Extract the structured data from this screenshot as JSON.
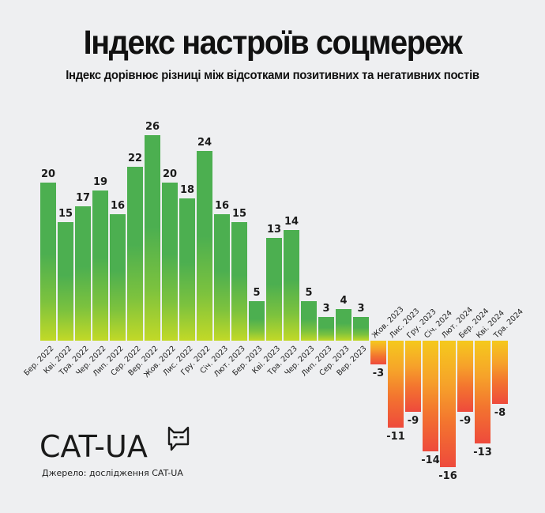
{
  "header": {
    "title": "Індекс настроїв соцмереж",
    "subtitle": "Індекс дорівнює різниці між відсотками позитивних та негативних постів"
  },
  "footer": {
    "logo_text": "CAT-UA",
    "logo_icon": "cat-speech-bubble-icon",
    "source": "Джерело: дослідження CAT-UA"
  },
  "colors": {
    "background": "#eeeff1",
    "positive_top": "#4caf50",
    "positive_bottom": "#c2d927",
    "negative_top": "#f5c91d",
    "negative_bottom": "#ee4a3c"
  },
  "chart_data": {
    "type": "bar",
    "title": "Індекс настроїв соцмереж",
    "subtitle": "Індекс дорівнює різниці між відсотками позитивних та негативних постів",
    "xlabel": "",
    "ylabel": "",
    "grid": false,
    "legend": null,
    "ylim": [
      -16,
      26
    ],
    "categories": [
      "Бер. 2022",
      "Кві. 2022",
      "Тра. 2022",
      "Чер. 2022",
      "Лип. 2022",
      "Сер. 2022",
      "Вер. 2022",
      "Жов. 2022",
      "Лис. 2022",
      "Гру. 2022",
      "Січ. 2023",
      "Лют. 2023",
      "Бер. 2023",
      "Кві. 2023",
      "Тра. 2023",
      "Чер. 2023",
      "Лип. 2023",
      "Сер. 2023",
      "Вер. 2023",
      "Жов. 2023",
      "Лис. 2023",
      "Гру. 2023",
      "Січ. 2024",
      "Лют. 2024",
      "Бер. 2024",
      "Кві. 2024",
      "Тра. 2024"
    ],
    "values": [
      20,
      15,
      17,
      19,
      16,
      22,
      26,
      20,
      18,
      24,
      16,
      15,
      5,
      13,
      14,
      5,
      3,
      4,
      3,
      -3,
      -11,
      -9,
      -14,
      -16,
      -9,
      -13,
      -8
    ],
    "data_labels": [
      "20",
      "15",
      "17",
      "19",
      "16",
      "22",
      "26",
      "20",
      "18",
      "24",
      "16",
      "15",
      "5",
      "13",
      "14",
      "5",
      "3",
      "4",
      "3",
      "-3",
      "-11",
      "-9",
      "-14",
      "-16",
      "-9",
      "-13",
      "-8"
    ]
  }
}
